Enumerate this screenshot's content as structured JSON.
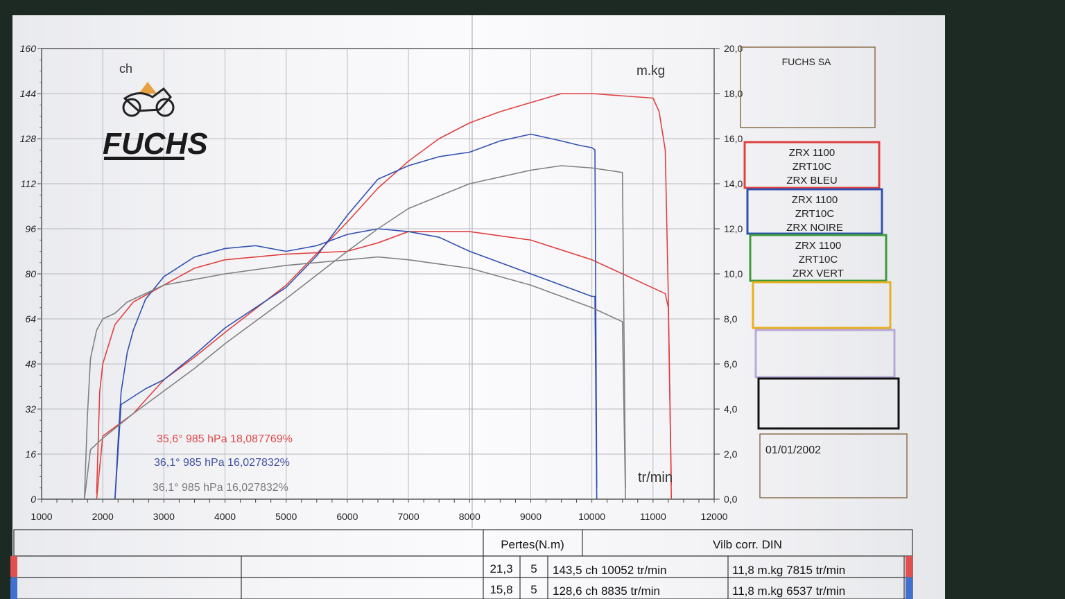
{
  "company": {
    "box_label": "FUCHS SA",
    "logo_text": "FUCHS"
  },
  "date": "01/01/2002",
  "left_axis_unit": "ch",
  "right_axis_unit": "m.kg",
  "x_axis_unit": "tr/min",
  "legend": [
    {
      "lines": [
        "ZRX 1100",
        "ZRT10C",
        "ZRX BLEU"
      ],
      "color": "#e04040"
    },
    {
      "lines": [
        "ZRX 1100",
        "ZRT10C",
        "ZRX NOIRE"
      ],
      "color": "#3050b0"
    },
    {
      "lines": [
        "ZRX 1100",
        "ZRT10C",
        "ZRX VERT"
      ],
      "color": "#3c9a3c"
    },
    {
      "lines": [],
      "color": "#e8b020"
    },
    {
      "lines": [],
      "color": "#b8a8d8"
    },
    {
      "lines": [],
      "color": "#111111"
    }
  ],
  "conditions": [
    {
      "text": "35,6°  985 hPa  18,087769%",
      "color": "#e04848"
    },
    {
      "text": "36,1°  985 hPa  16,027832%",
      "color": "#4050a0"
    },
    {
      "text": "36,1°  985 hPa  16,027832%",
      "color": "#7a7a7a"
    }
  ],
  "table": {
    "header_losses": "Pertes(N.m)",
    "header_right": "Vilb corr. DIN",
    "rows": [
      {
        "loss": "21,3",
        "n": "5",
        "power": "143,5 ch 10052 tr/min",
        "torque": "11,8 m.kg 7815 tr/min"
      },
      {
        "loss": "15,8",
        "n": "5",
        "power": "128,6 ch 8835 tr/min",
        "torque": "11,8 m.kg 6537 tr/min"
      }
    ]
  },
  "chart_data": {
    "type": "line",
    "x_label": "tr/min",
    "y_left_label": "ch",
    "y_right_label": "m.kg",
    "xlim": [
      1000,
      12000
    ],
    "ylim_left": [
      0,
      160
    ],
    "ylim_right": [
      0,
      20
    ],
    "x_ticks": [
      "1000",
      "2000",
      "3000",
      "4000",
      "5000",
      "6000",
      "7000",
      "8000",
      "9000",
      "10000",
      "11000",
      "12000"
    ],
    "y_left_ticks": [
      "0",
      "16",
      "32",
      "48",
      "64",
      "80",
      "96",
      "112",
      "128",
      "144",
      "160"
    ],
    "y_right_ticks": [
      "0,0",
      "2,0",
      "4,0",
      "6,0",
      "8,0",
      "10,0",
      "12,0",
      "14,0",
      "16,0",
      "18,0",
      "20,0"
    ],
    "series": [
      {
        "name": "ZRX BLEU",
        "color": "#e04040",
        "power": [
          [
            1900,
            2
          ],
          [
            1950,
            38
          ],
          [
            2000,
            48
          ],
          [
            2200,
            62
          ],
          [
            2500,
            70
          ],
          [
            3000,
            76
          ],
          [
            3500,
            82
          ],
          [
            4000,
            85
          ],
          [
            5000,
            87
          ],
          [
            6000,
            88
          ],
          [
            6500,
            91
          ],
          [
            7000,
            95
          ],
          [
            8000,
            95
          ],
          [
            9000,
            92
          ],
          [
            10000,
            85
          ],
          [
            10500,
            80
          ],
          [
            11000,
            75
          ],
          [
            11200,
            73
          ],
          [
            11250,
            68
          ],
          [
            11300,
            5
          ]
        ],
        "torque": [
          [
            1900,
            0
          ],
          [
            2000,
            2.8
          ],
          [
            2500,
            3.8
          ],
          [
            3000,
            5.3
          ],
          [
            3500,
            6.3
          ],
          [
            4000,
            7.4
          ],
          [
            5000,
            9.5
          ],
          [
            6000,
            12.3
          ],
          [
            6500,
            13.8
          ],
          [
            7000,
            15.0
          ],
          [
            7500,
            16.0
          ],
          [
            8000,
            16.7
          ],
          [
            8500,
            17.2
          ],
          [
            9000,
            17.6
          ],
          [
            9500,
            18.0
          ],
          [
            10000,
            18.0
          ],
          [
            10500,
            17.9
          ],
          [
            11000,
            17.8
          ],
          [
            11100,
            17.2
          ],
          [
            11200,
            15.5
          ],
          [
            11250,
            9.0
          ],
          [
            11300,
            0
          ]
        ]
      },
      {
        "name": "ZRX NOIRE",
        "color": "#3050b0",
        "power": [
          [
            2200,
            0
          ],
          [
            2250,
            20
          ],
          [
            2300,
            38
          ],
          [
            2400,
            52
          ],
          [
            2500,
            60
          ],
          [
            2700,
            71
          ],
          [
            3000,
            79
          ],
          [
            3500,
            86
          ],
          [
            4000,
            89
          ],
          [
            4500,
            90
          ],
          [
            5000,
            88
          ],
          [
            5500,
            90
          ],
          [
            6000,
            94
          ],
          [
            6500,
            96
          ],
          [
            7000,
            95
          ],
          [
            7500,
            93
          ],
          [
            8000,
            88
          ],
          [
            9000,
            80
          ],
          [
            9500,
            76
          ],
          [
            10000,
            72
          ],
          [
            10050,
            72
          ],
          [
            10080,
            0
          ]
        ],
        "torque": [
          [
            2200,
            0
          ],
          [
            2300,
            4.2
          ],
          [
            2700,
            4.9
          ],
          [
            3000,
            5.3
          ],
          [
            3500,
            6.4
          ],
          [
            4000,
            7.6
          ],
          [
            5000,
            9.4
          ],
          [
            5500,
            10.8
          ],
          [
            6000,
            12.6
          ],
          [
            6500,
            14.2
          ],
          [
            7000,
            14.8
          ],
          [
            7500,
            15.2
          ],
          [
            8000,
            15.4
          ],
          [
            8500,
            15.9
          ],
          [
            9000,
            16.2
          ],
          [
            9500,
            15.9
          ],
          [
            9800,
            15.7
          ],
          [
            10000,
            15.6
          ],
          [
            10050,
            15.5
          ],
          [
            10080,
            0.5
          ]
        ]
      },
      {
        "name": "ZRX VERT",
        "color": "#808080",
        "power": [
          [
            1700,
            0
          ],
          [
            1750,
            30
          ],
          [
            1800,
            50
          ],
          [
            1900,
            60
          ],
          [
            2000,
            64
          ],
          [
            2200,
            66
          ],
          [
            2400,
            70
          ],
          [
            3000,
            76
          ],
          [
            4000,
            80
          ],
          [
            5000,
            83
          ],
          [
            6000,
            85
          ],
          [
            6500,
            86
          ],
          [
            7000,
            85
          ],
          [
            8000,
            82
          ],
          [
            9000,
            76
          ],
          [
            10000,
            68
          ],
          [
            10500,
            63
          ],
          [
            10550,
            0
          ]
        ],
        "torque": [
          [
            1700,
            0
          ],
          [
            1800,
            2.2
          ],
          [
            2000,
            2.7
          ],
          [
            2500,
            3.8
          ],
          [
            3000,
            4.8
          ],
          [
            3500,
            5.8
          ],
          [
            4000,
            6.9
          ],
          [
            5000,
            8.9
          ],
          [
            6000,
            11.0
          ],
          [
            6500,
            12.0
          ],
          [
            7000,
            12.9
          ],
          [
            8000,
            14.0
          ],
          [
            9000,
            14.6
          ],
          [
            9500,
            14.8
          ],
          [
            10000,
            14.7
          ],
          [
            10500,
            14.5
          ],
          [
            10550,
            0.5
          ]
        ]
      }
    ]
  }
}
